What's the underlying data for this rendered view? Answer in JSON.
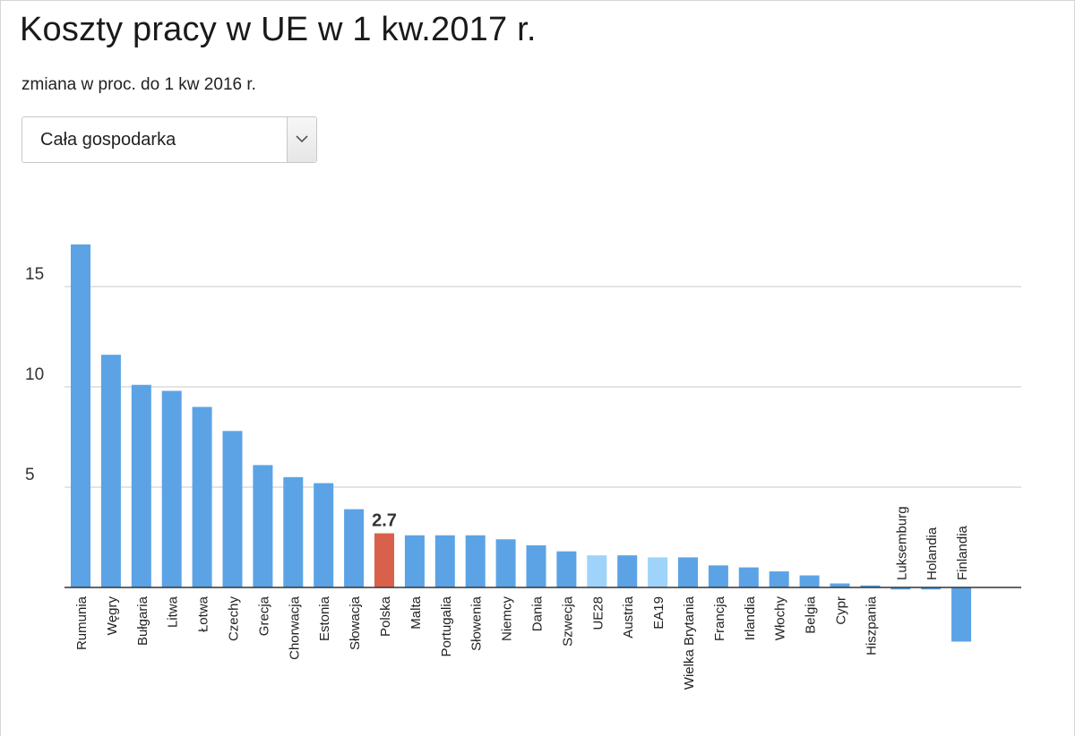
{
  "header": {
    "title": "Koszty pracy w UE w 1 kw.2017 r.",
    "subtitle": "zmiana w proc. do 1 kw 2016 r."
  },
  "filter": {
    "selected": "Cała gospodarka",
    "icon": "chevron-down-icon"
  },
  "colors": {
    "bar": "#5ba3e5",
    "aggregate": "#9fd3f9",
    "highlight": "#d9614c",
    "grid": "#dcdcdc",
    "baseline": "#333333"
  },
  "chart_data": {
    "type": "bar",
    "categories": [
      "Rumunia",
      "Węgry",
      "Bułgaria",
      "Litwa",
      "Łotwa",
      "Czechy",
      "Grecja",
      "Chorwacja",
      "Estonia",
      "Słowacja",
      "Polska",
      "Malta",
      "Portugalia",
      "Słowenia",
      "Niemcy",
      "Dania",
      "Szwecja",
      "UE28",
      "Austria",
      "EA19",
      "Wielka Brytania",
      "Francja",
      "Irlandia",
      "Włochy",
      "Belgia",
      "Cypr",
      "Hiszpania",
      "Luksemburg",
      "Holandia",
      "Finlandia"
    ],
    "values": [
      17.1,
      11.6,
      10.1,
      9.8,
      9.0,
      7.8,
      6.1,
      5.5,
      5.2,
      3.9,
      2.7,
      2.6,
      2.6,
      2.6,
      2.4,
      2.1,
      1.8,
      1.6,
      1.6,
      1.5,
      1.5,
      1.1,
      1.0,
      0.8,
      0.6,
      0.2,
      0.1,
      -0.1,
      -0.1,
      -2.7
    ],
    "highlight": "Polska",
    "highlight_label": "2.7",
    "aggregates": [
      "UE28",
      "EA19"
    ],
    "yticks": [
      5,
      10,
      15
    ],
    "ylim": [
      -7,
      18
    ],
    "grid": true,
    "legend": "none"
  }
}
